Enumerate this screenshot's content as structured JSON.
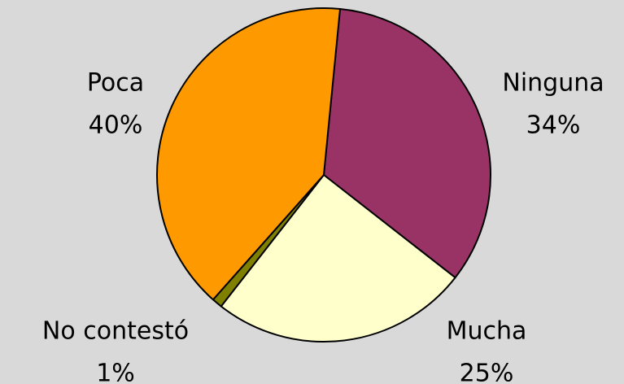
{
  "chart_data": {
    "type": "pie",
    "categories": [
      "Ninguna",
      "Mucha",
      "No contestó",
      "Poca"
    ],
    "values": [
      34,
      25,
      1,
      40
    ],
    "value_labels": [
      "34%",
      "25%",
      "1%",
      "40%"
    ],
    "colors": [
      "#993366",
      "#ffffcc",
      "#808000",
      "#ff9900"
    ]
  }
}
